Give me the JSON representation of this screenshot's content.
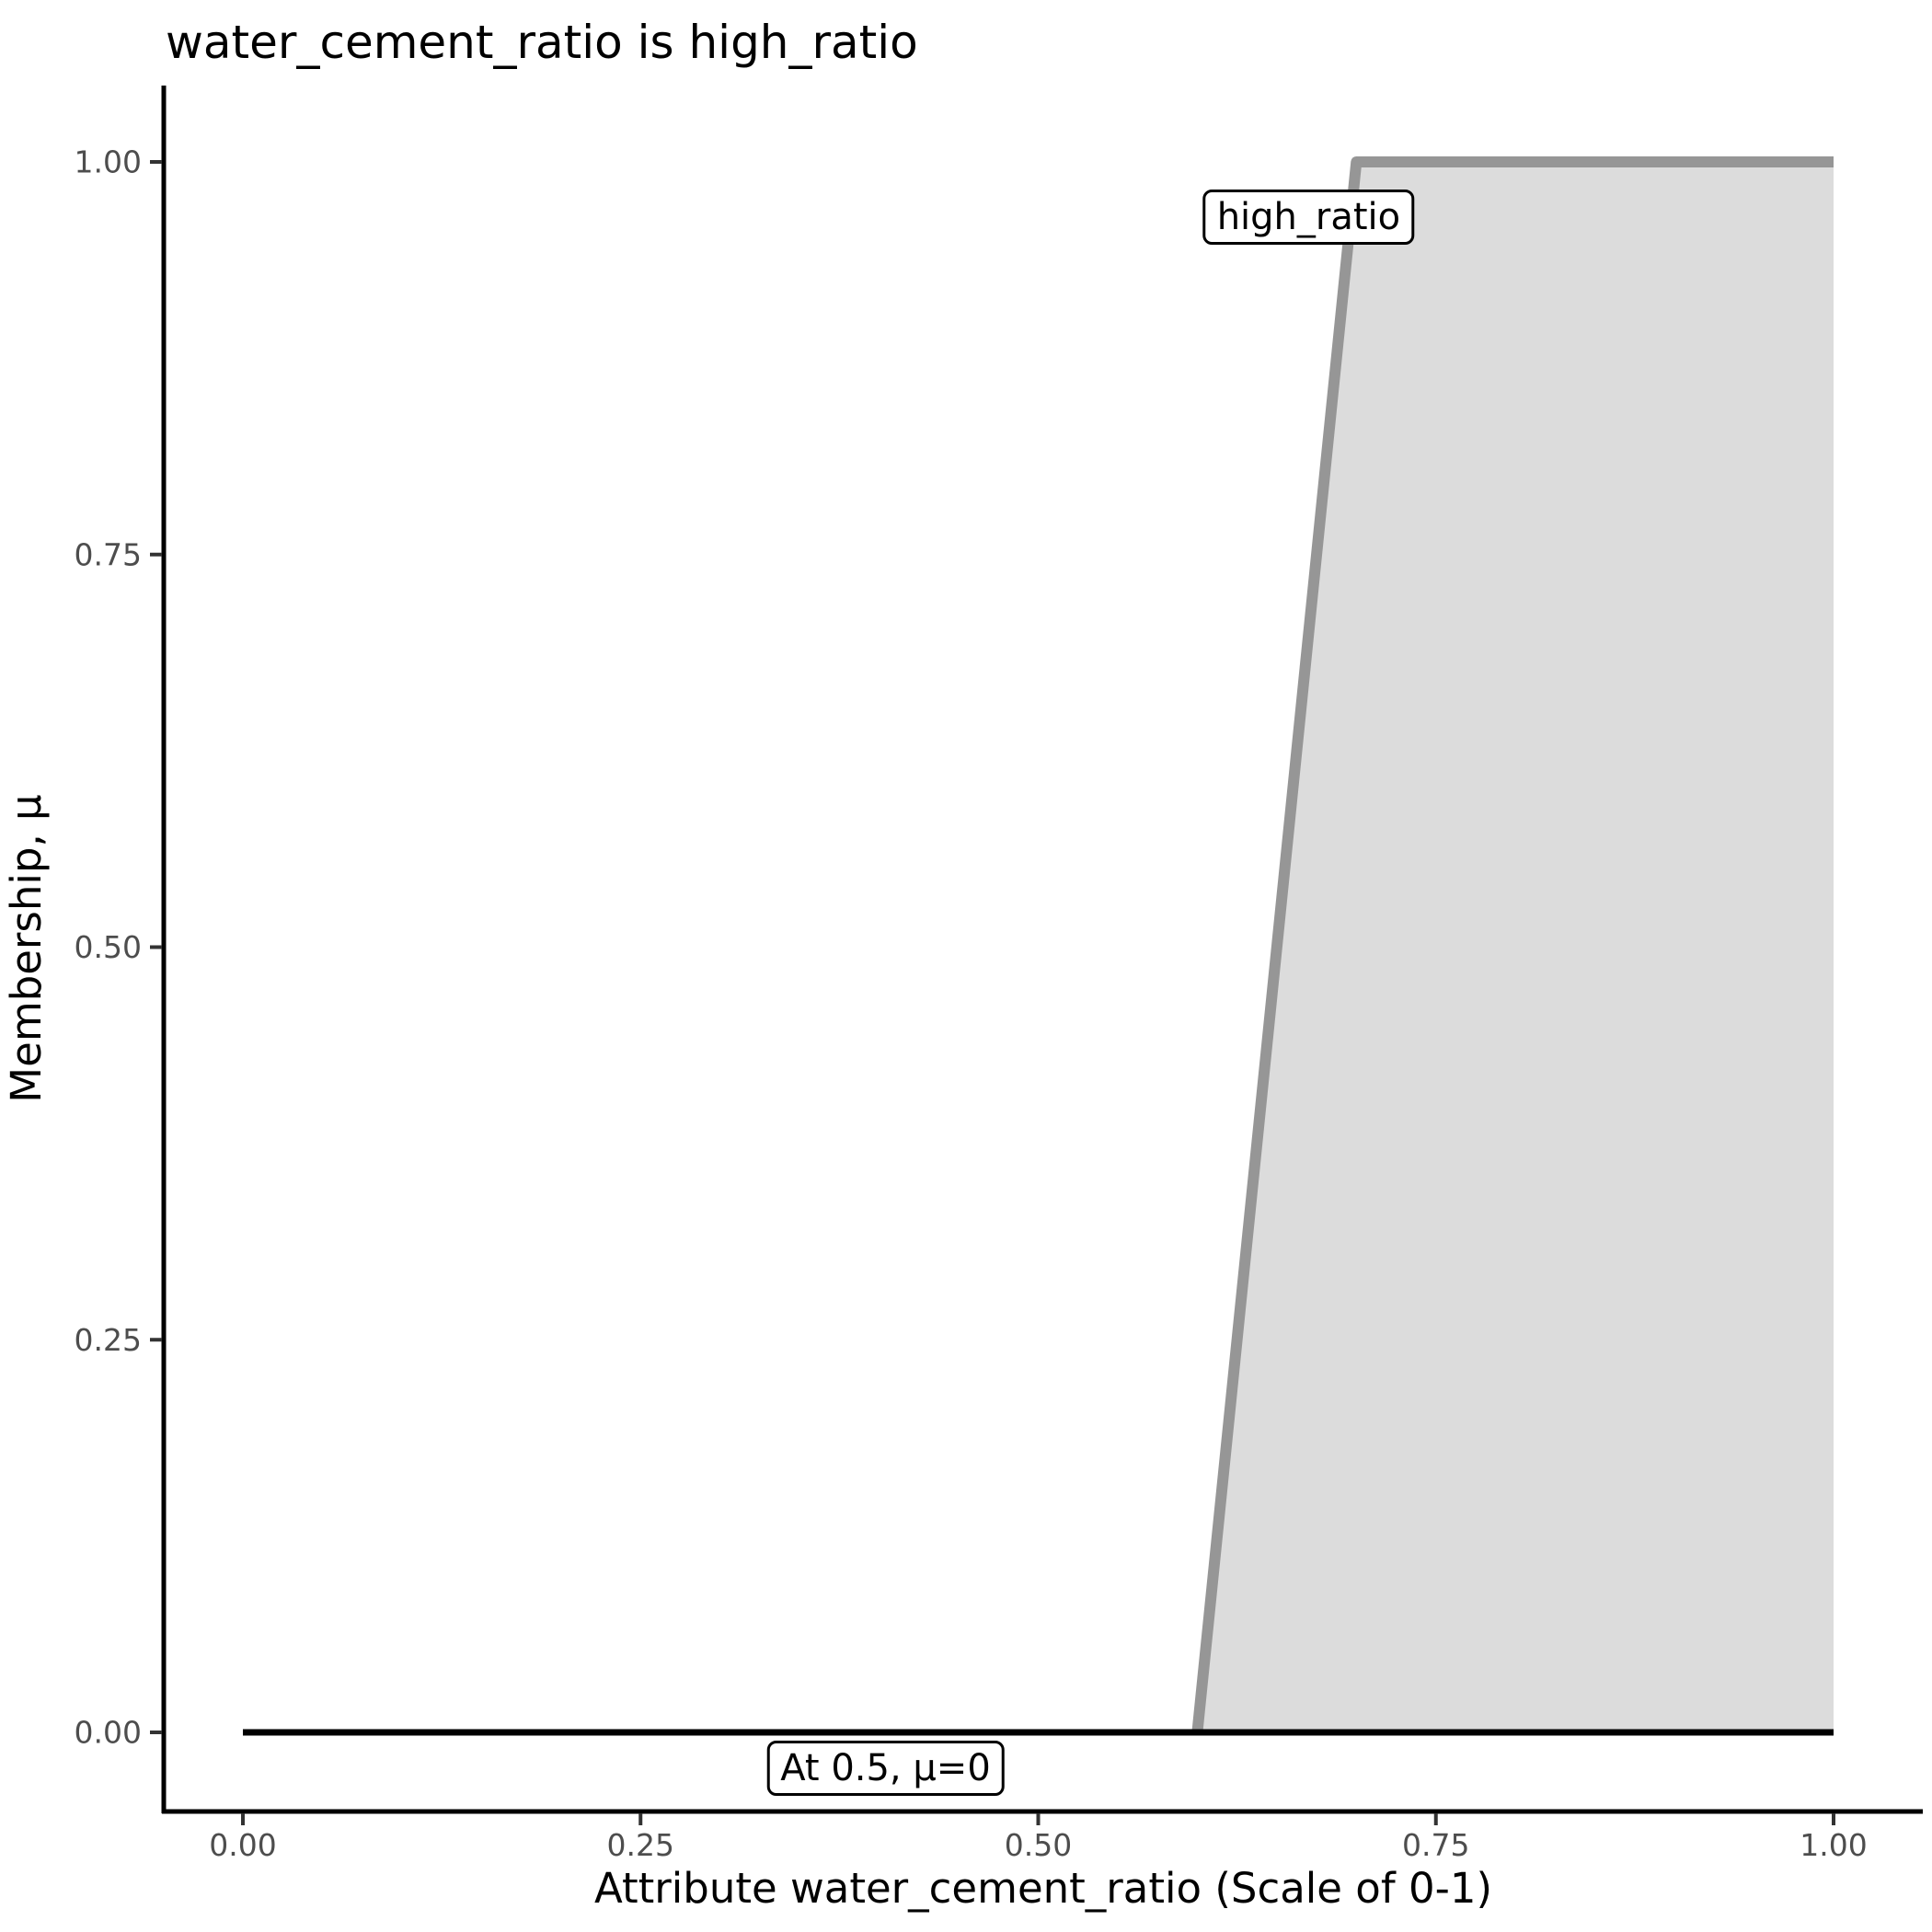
{
  "chart_data": {
    "type": "area",
    "title": "water_cement_ratio is high_ratio",
    "xlabel": "Attribute water_cement_ratio (Scale of 0-1)",
    "ylabel": "Membership, μ",
    "xlim": [
      0,
      1
    ],
    "ylim": [
      0,
      1
    ],
    "grid": false,
    "legend": "none",
    "background_color": "#ffffff",
    "x_ticks": {
      "values": [
        0,
        0.25,
        0.5,
        0.75,
        1.0
      ],
      "labels": [
        "0.00",
        "0.25",
        "0.50",
        "0.75",
        "1.00"
      ]
    },
    "y_ticks": {
      "values": [
        0,
        0.25,
        0.5,
        0.75,
        1.0
      ],
      "labels": [
        "0.00",
        "0.25",
        "0.50",
        "0.75",
        "1.00"
      ]
    },
    "series": [
      {
        "name": "high-ratio-membership",
        "label": "high_ratio",
        "type": "area",
        "points": [
          [
            0.6,
            0
          ],
          [
            0.7,
            1
          ],
          [
            1.0,
            1
          ]
        ],
        "close_points": [
          [
            1.0,
            0
          ]
        ],
        "stroke": "#969696",
        "stroke_width_px": 12,
        "fill": "#dcdcdc"
      },
      {
        "name": "zero-membership-line",
        "label": "At 0.5, μ=0",
        "type": "line",
        "points": [
          [
            0,
            0
          ],
          [
            1,
            0
          ]
        ],
        "stroke": "#000000",
        "stroke_width_px": 7,
        "fill": "none"
      }
    ],
    "annotations": [
      {
        "name": "high-ratio-label",
        "text": "high_ratio",
        "x": 0.67,
        "y": 0.965
      },
      {
        "name": "mu-at-0-point-5-label",
        "text": "At 0.5, μ=0",
        "x": 0.404,
        "y": -0.023
      }
    ],
    "colors": {
      "curve": "#969696",
      "area_fill": "#dcdcdc",
      "axis_line": "#000000",
      "tick_mark": "#333333",
      "tick_label": "#4d4d4d",
      "title_text": "#000000"
    }
  }
}
